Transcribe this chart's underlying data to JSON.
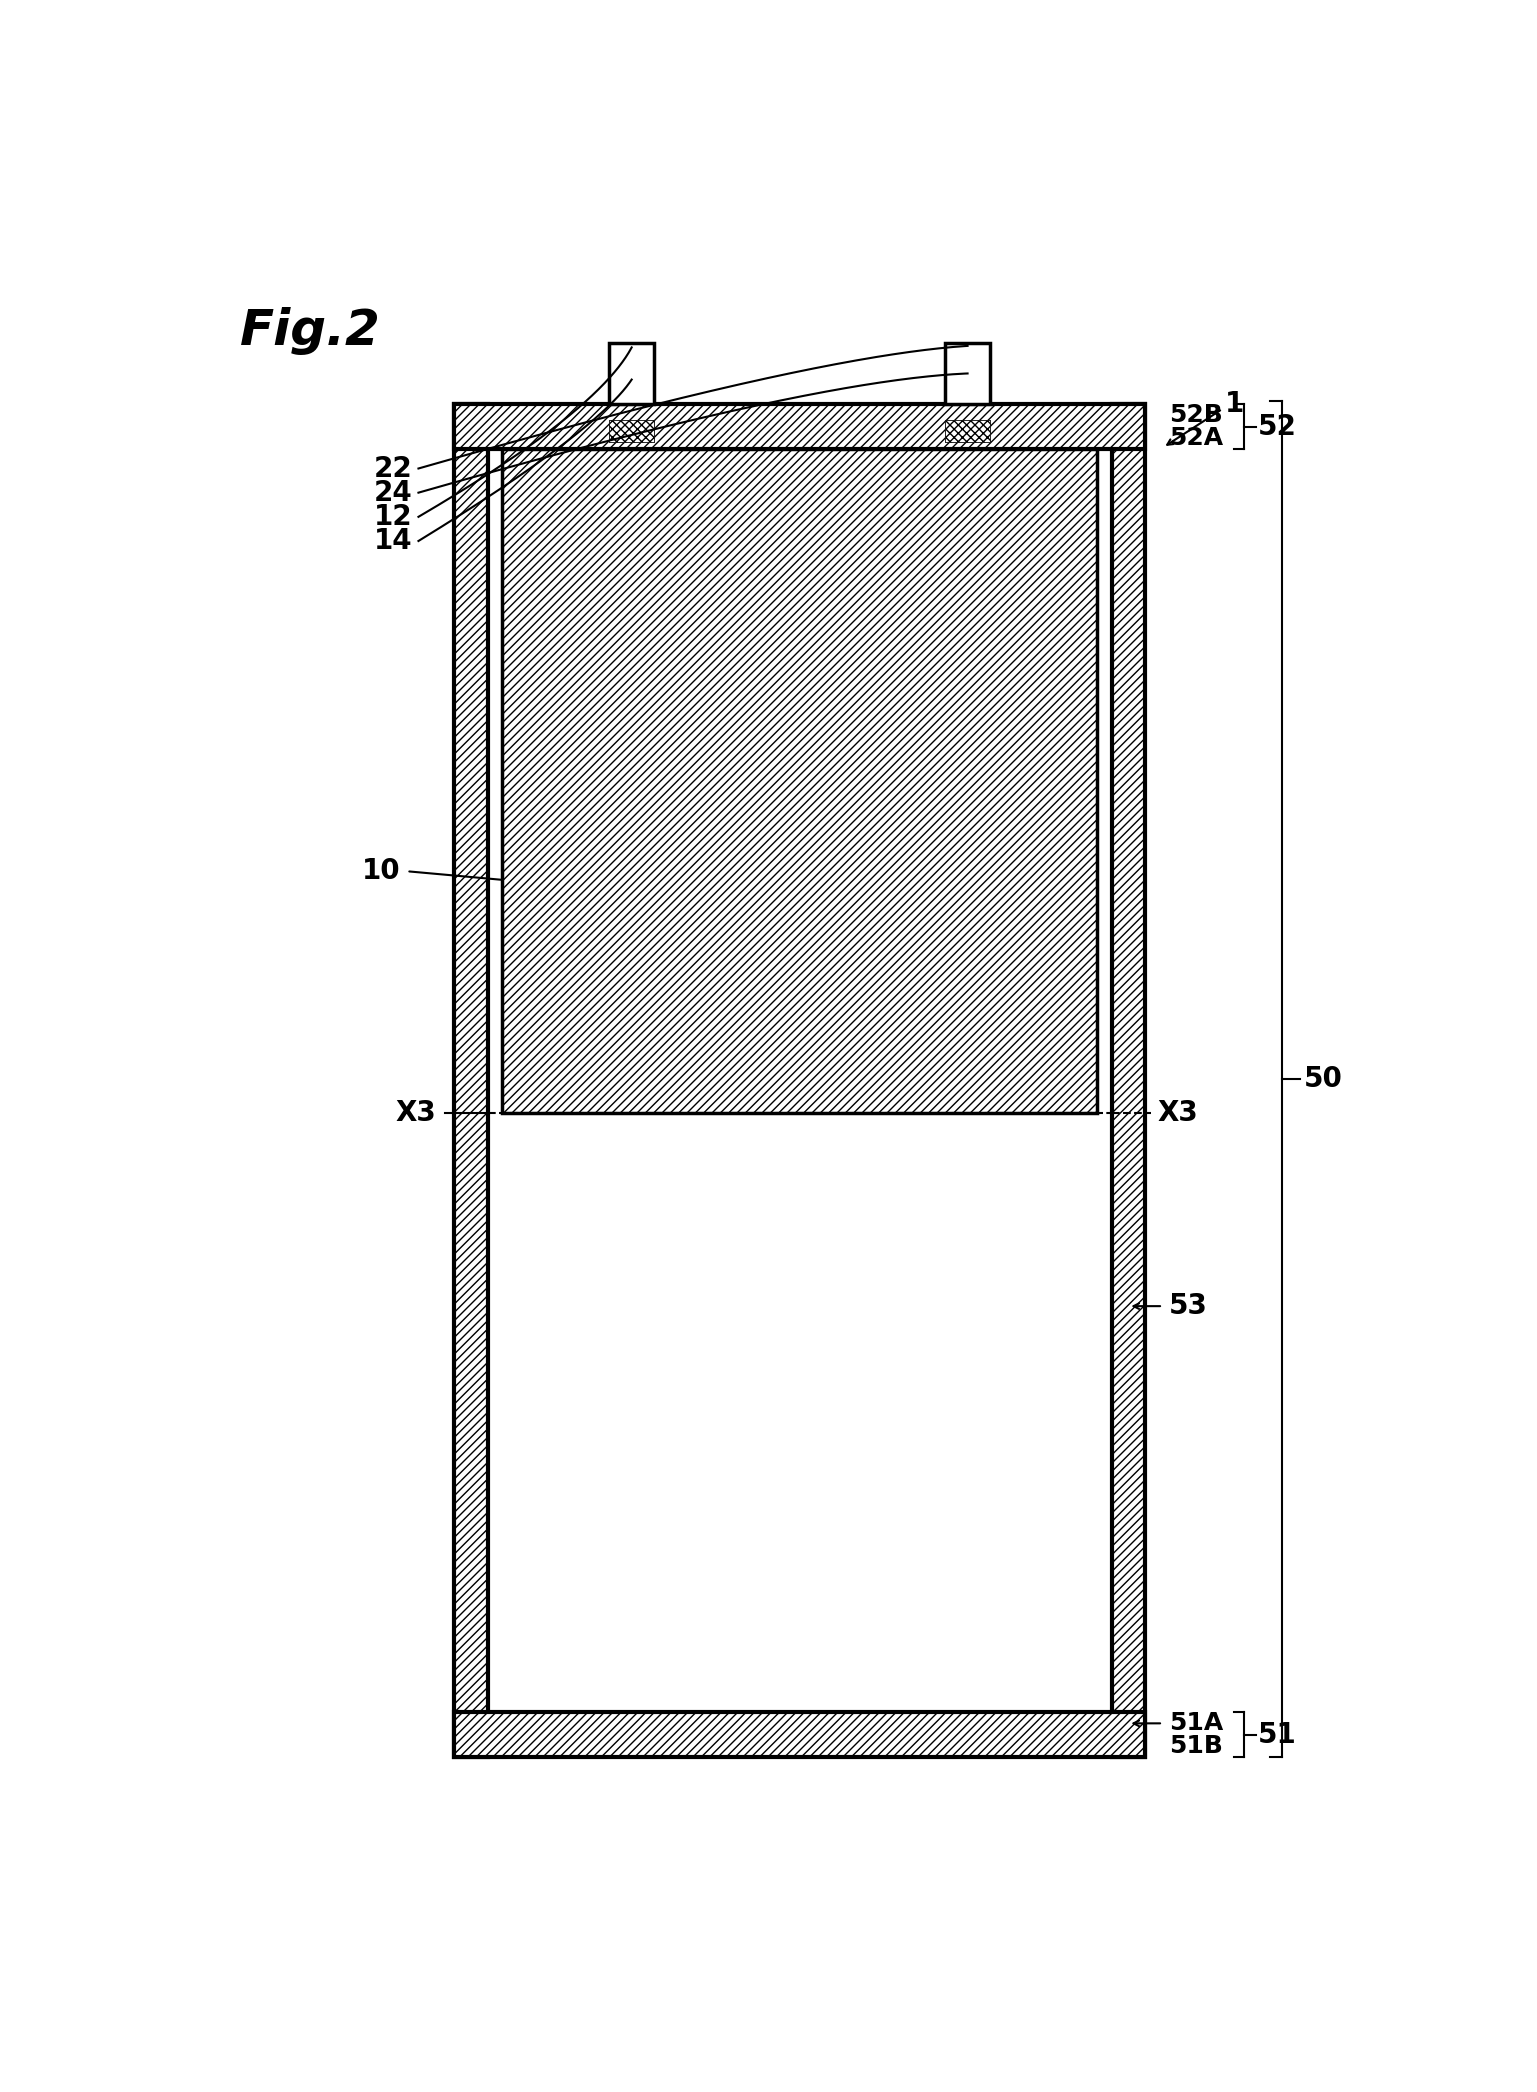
{
  "fig_title": "Fig.2",
  "bg_color": "#ffffff",
  "line_color": "#000000",
  "labels": {
    "1": "1",
    "10": "10",
    "12": "12",
    "14": "14",
    "22": "22",
    "24": "24",
    "50": "50",
    "51": "51",
    "51A": "51A",
    "51B": "51B",
    "52": "52",
    "52A": "52A",
    "52B": "52B",
    "53": "53",
    "X3": "X3"
  }
}
